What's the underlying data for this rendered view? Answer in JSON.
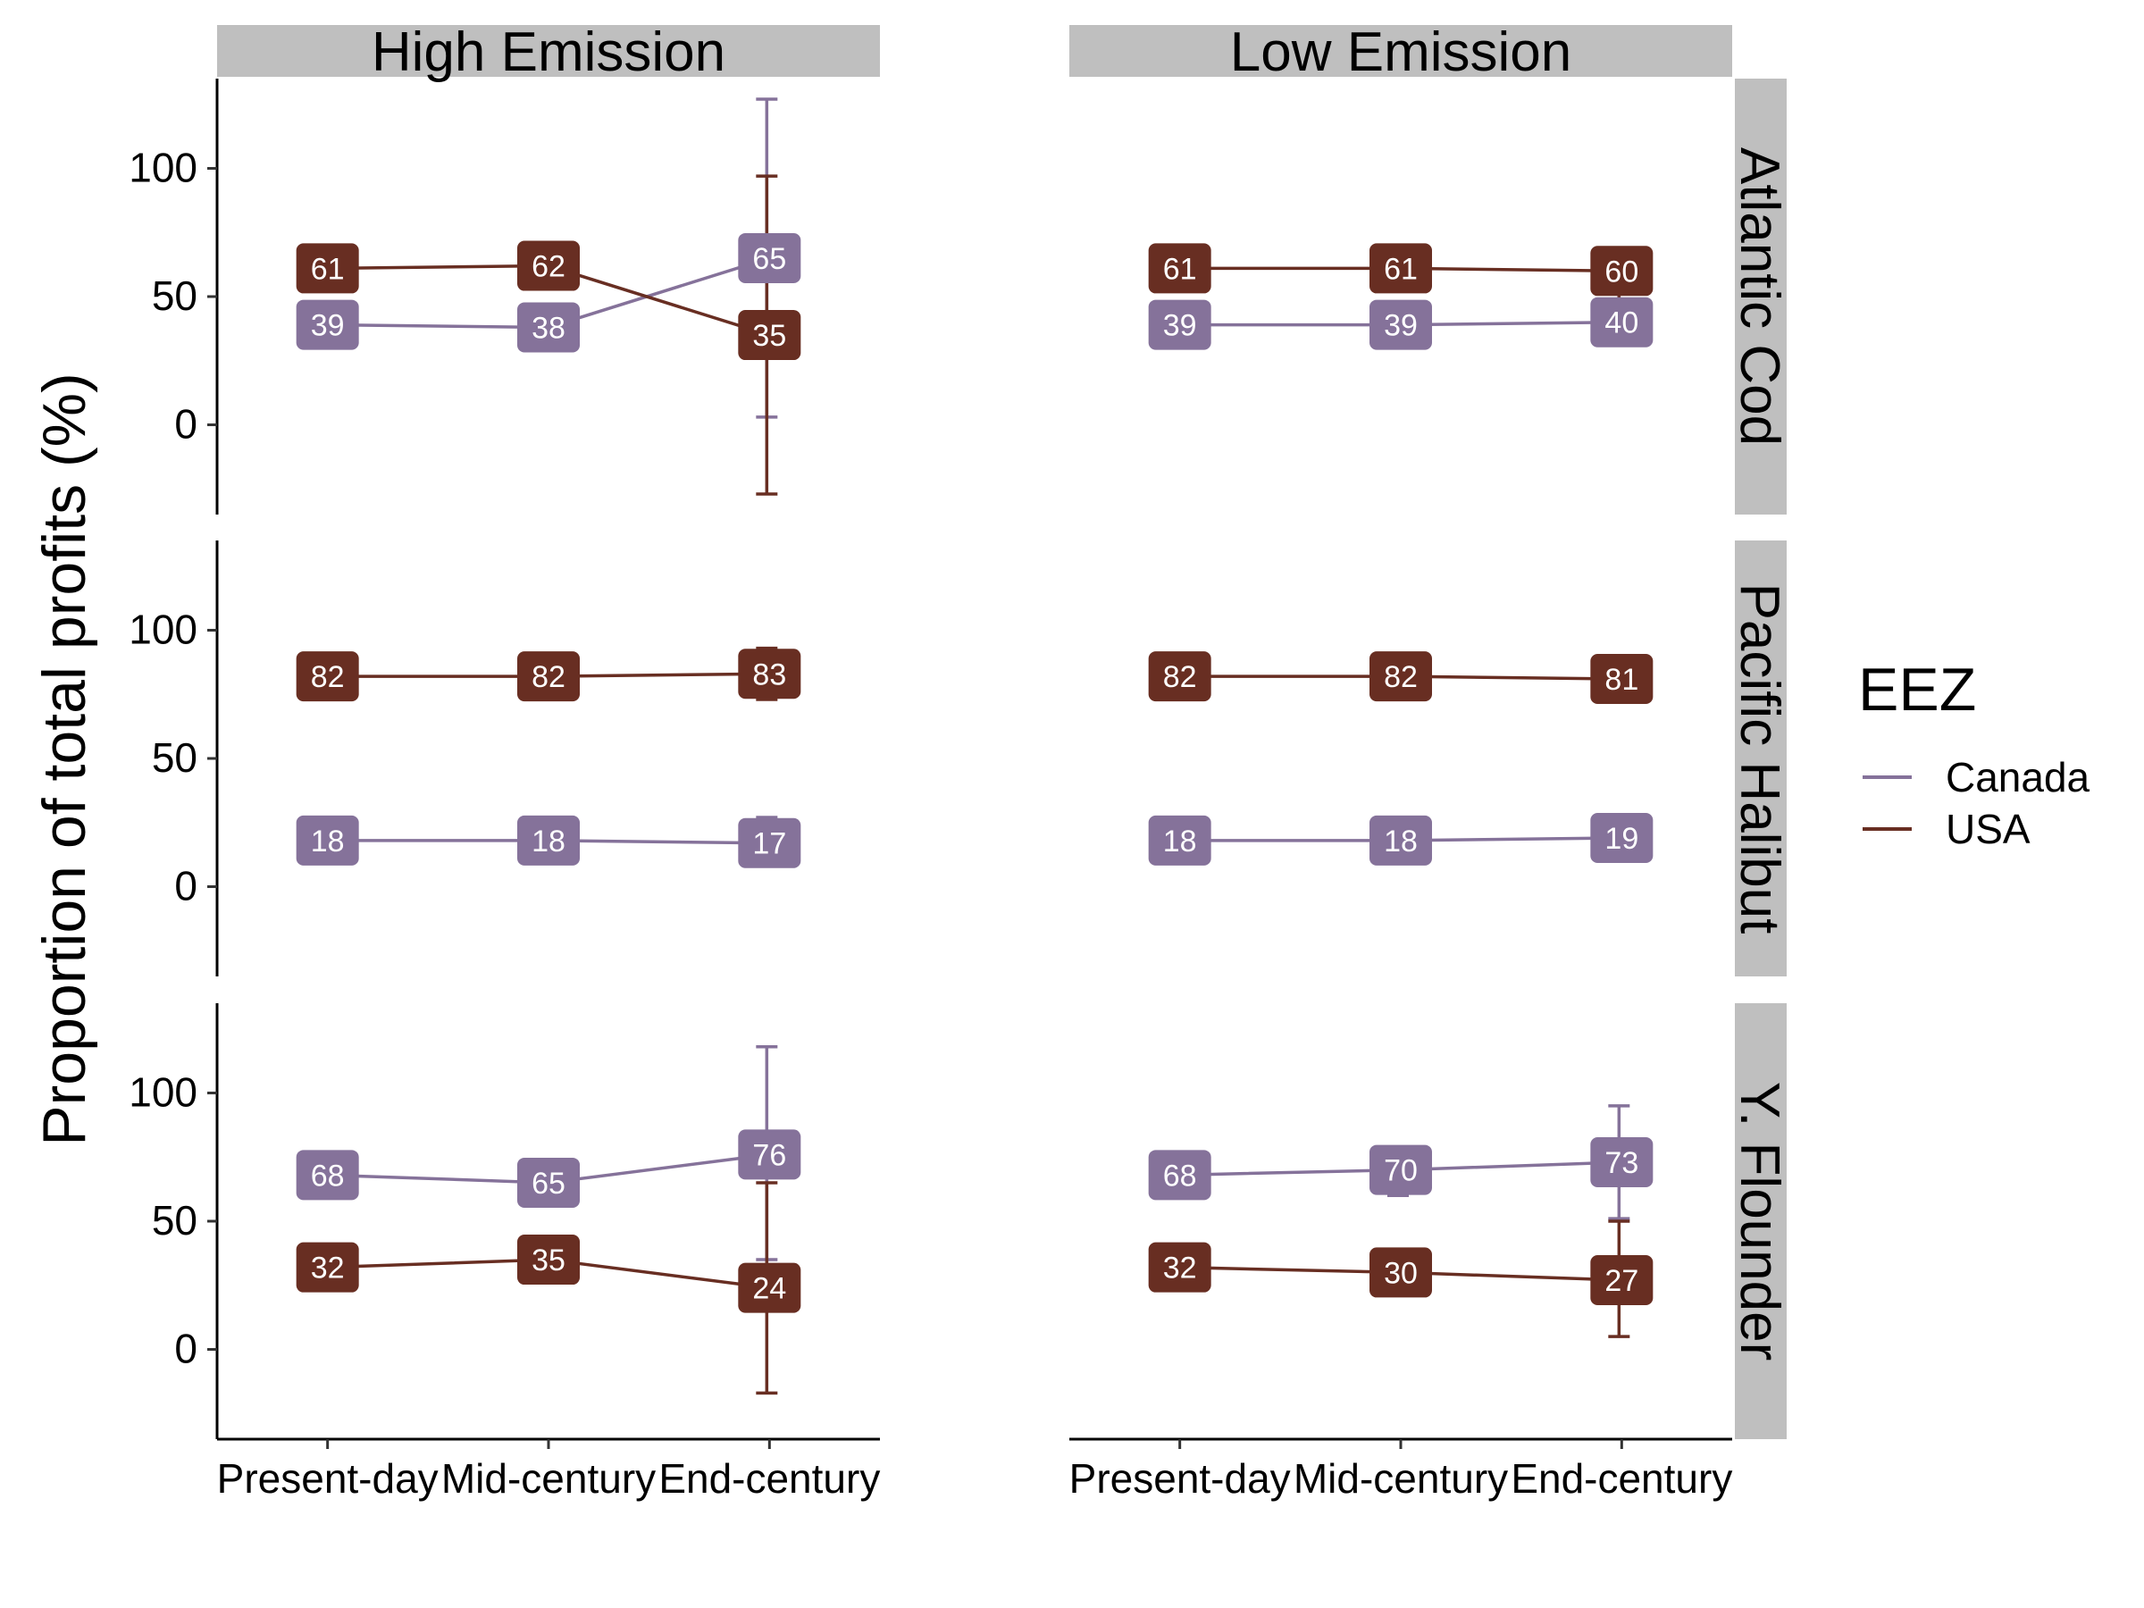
{
  "chart_data": {
    "type": "line",
    "ylabel": "Proportion of total profits (%)",
    "xlabel": "",
    "x_categories": [
      "Present-day",
      "Mid-century",
      "End-century"
    ],
    "ylim": [
      -35,
      135
    ],
    "yticks": [
      0,
      50,
      100
    ],
    "grid": false,
    "columns": [
      "High Emission",
      "Low Emission"
    ],
    "rows": [
      "Atlantic Cod",
      "Pacific Halibut",
      "Y. Flounder"
    ],
    "legend": {
      "title": "EEZ",
      "position": "right",
      "entries": [
        "Canada",
        "USA"
      ]
    },
    "colors": {
      "Canada": "#85729a",
      "USA": "#682e22"
    },
    "panels": [
      {
        "row": "Atlantic Cod",
        "col": "High Emission",
        "series": [
          {
            "name": "Canada",
            "values": [
              39,
              38,
              65
            ],
            "error_low": [
              null,
              34,
              3
            ],
            "error_high": [
              null,
              42,
              127
            ]
          },
          {
            "name": "USA",
            "values": [
              61,
              62,
              35
            ],
            "error_low": [
              null,
              58,
              -27
            ],
            "error_high": [
              null,
              66,
              97
            ]
          }
        ]
      },
      {
        "row": "Atlantic Cod",
        "col": "Low Emission",
        "series": [
          {
            "name": "Canada",
            "values": [
              39,
              39,
              40
            ],
            "error_low": [
              null,
              32,
              31
            ],
            "error_high": [
              null,
              46,
              54
            ]
          },
          {
            "name": "USA",
            "values": [
              61,
              61,
              60
            ],
            "error_low": [
              null,
              54,
              46
            ],
            "error_high": [
              null,
              68,
              65
            ]
          }
        ]
      },
      {
        "row": "Pacific Halibut",
        "col": "High Emission",
        "series": [
          {
            "name": "Canada",
            "values": [
              18,
              18,
              17
            ],
            "error_low": [
              null,
              14,
              8
            ],
            "error_high": [
              null,
              22,
              27
            ]
          },
          {
            "name": "USA",
            "values": [
              82,
              82,
              83
            ],
            "error_low": [
              null,
              78,
              73
            ],
            "error_high": [
              null,
              86,
              93
            ]
          }
        ]
      },
      {
        "row": "Pacific Halibut",
        "col": "Low Emission",
        "series": [
          {
            "name": "Canada",
            "values": [
              18,
              18,
              19
            ],
            "error_low": [
              null,
              14,
              16
            ],
            "error_high": [
              null,
              22,
              22
            ]
          },
          {
            "name": "USA",
            "values": [
              82,
              82,
              81
            ],
            "error_low": [
              null,
              78,
              79
            ],
            "error_high": [
              null,
              86,
              84
            ]
          }
        ]
      },
      {
        "row": "Y. Flounder",
        "col": "High Emission",
        "series": [
          {
            "name": "Canada",
            "values": [
              68,
              65,
              76
            ],
            "error_low": [
              null,
              60,
              35
            ],
            "error_high": [
              null,
              70,
              118
            ]
          },
          {
            "name": "USA",
            "values": [
              32,
              35,
              24
            ],
            "error_low": [
              null,
              30,
              -17
            ],
            "error_high": [
              null,
              40,
              65
            ]
          }
        ]
      },
      {
        "row": "Y. Flounder",
        "col": "Low Emission",
        "series": [
          {
            "name": "Canada",
            "values": [
              68,
              70,
              73
            ],
            "error_low": [
              null,
              60,
              51
            ],
            "error_high": [
              null,
              79,
              95
            ]
          },
          {
            "name": "USA",
            "values": [
              32,
              30,
              27
            ],
            "error_low": [
              null,
              21,
              5
            ],
            "error_high": [
              null,
              39,
              50
            ]
          }
        ]
      }
    ]
  }
}
